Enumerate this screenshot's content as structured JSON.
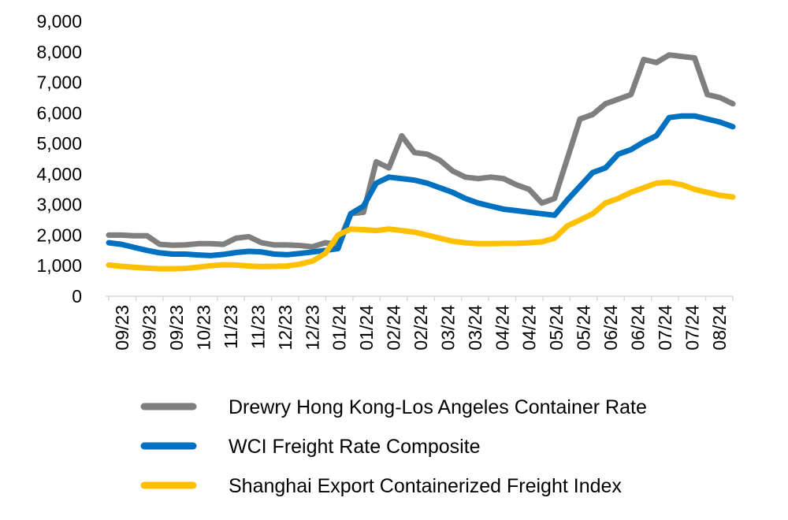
{
  "chart_data": {
    "type": "line",
    "ylim": [
      0,
      9000
    ],
    "y_ticks": [
      0,
      1000,
      2000,
      3000,
      4000,
      5000,
      6000,
      7000,
      8000,
      9000
    ],
    "y_tick_labels": [
      "0",
      "1,000",
      "2,000",
      "3,000",
      "4,000",
      "5,000",
      "6,000",
      "7,000",
      "8,000",
      "9,000"
    ],
    "x_tick_labels": [
      "09/23",
      "09/23",
      "09/23",
      "10/23",
      "11/23",
      "11/23",
      "12/23",
      "12/23",
      "01/24",
      "01/24",
      "02/24",
      "02/24",
      "03/24",
      "03/24",
      "04/24",
      "04/24",
      "05/24",
      "05/24",
      "06/24",
      "06/24",
      "07/24",
      "07/24",
      "08/24"
    ],
    "grid": false,
    "legend_position": "bottom",
    "series": [
      {
        "name": "Drewry Hong Kong-Los Angeles Container Rate",
        "color": "#7f7f7f",
        "values": [
          2000,
          2000,
          1980,
          1980,
          1700,
          1670,
          1680,
          1720,
          1720,
          1700,
          1900,
          1950,
          1750,
          1680,
          1680,
          1660,
          1620,
          1750,
          1700,
          2700,
          2750,
          4400,
          4200,
          5250,
          4700,
          4650,
          4450,
          4100,
          3900,
          3850,
          3900,
          3850,
          3650,
          3500,
          3050,
          3200,
          4500,
          5800,
          5950,
          6300,
          6450,
          6600,
          7750,
          7650,
          7900,
          7850,
          7800,
          6600,
          6500,
          6300
        ]
      },
      {
        "name": "WCI Freight Rate Composite",
        "color": "#0070c0",
        "values": [
          1750,
          1700,
          1600,
          1500,
          1420,
          1380,
          1380,
          1350,
          1330,
          1370,
          1430,
          1470,
          1450,
          1380,
          1360,
          1400,
          1450,
          1500,
          1560,
          2700,
          2950,
          3700,
          3900,
          3850,
          3800,
          3700,
          3550,
          3400,
          3200,
          3050,
          2950,
          2850,
          2800,
          2750,
          2700,
          2650,
          3150,
          3600,
          4050,
          4200,
          4650,
          4800,
          5050,
          5250,
          5850,
          5900,
          5900,
          5800,
          5700,
          5550
        ]
      },
      {
        "name": "Shanghai Export Containerized Freight Index",
        "color": "#ffc000",
        "values": [
          1020,
          980,
          950,
          920,
          900,
          900,
          910,
          950,
          1000,
          1030,
          1020,
          990,
          970,
          980,
          990,
          1050,
          1150,
          1400,
          2000,
          2200,
          2180,
          2150,
          2200,
          2150,
          2100,
          2000,
          1900,
          1800,
          1750,
          1720,
          1720,
          1730,
          1730,
          1750,
          1780,
          1900,
          2300,
          2500,
          2700,
          3050,
          3200,
          3400,
          3550,
          3700,
          3730,
          3650,
          3500,
          3400,
          3300,
          3250
        ]
      }
    ]
  }
}
